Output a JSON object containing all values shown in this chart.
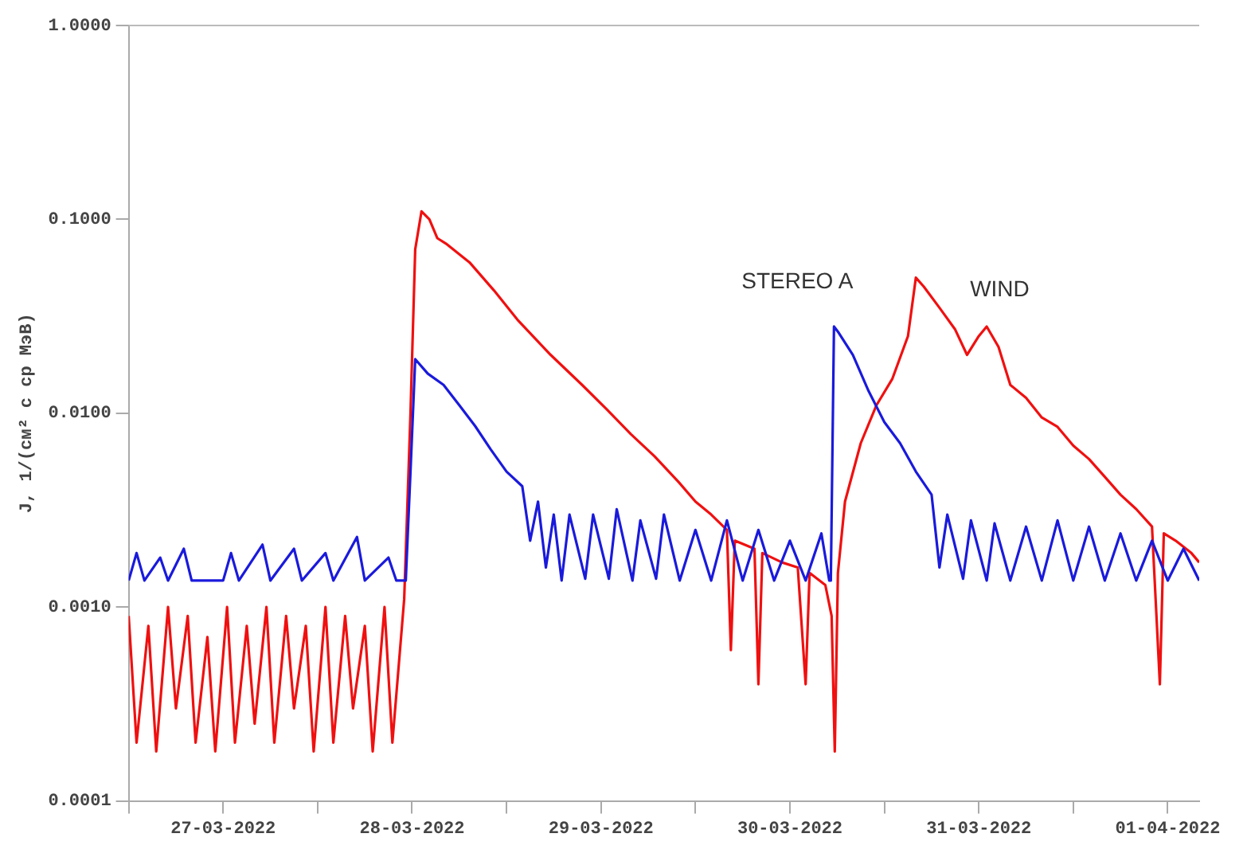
{
  "chart_data": {
    "type": "line",
    "ylabel": "J, 1/(см² с ср МэВ)",
    "log": "y",
    "grid": false,
    "legend": false,
    "marker": "none",
    "line_style": "solid",
    "xlim": [
      "2022-03-27T00:00",
      "2022-04-01T16:00"
    ],
    "xticks": [
      {
        "value": "2022-03-27T00:00",
        "label": null
      },
      {
        "value": "2022-03-27T12:00",
        "label": "27-03-2022"
      },
      {
        "value": "2022-03-28T00:00",
        "label": null
      },
      {
        "value": "2022-03-28T12:00",
        "label": "28-03-2022"
      },
      {
        "value": "2022-03-29T00:00",
        "label": null
      },
      {
        "value": "2022-03-29T12:00",
        "label": "29-03-2022"
      },
      {
        "value": "2022-03-30T00:00",
        "label": null
      },
      {
        "value": "2022-03-30T12:00",
        "label": "30-03-2022"
      },
      {
        "value": "2022-03-31T00:00",
        "label": null
      },
      {
        "value": "2022-03-31T12:00",
        "label": "31-03-2022"
      },
      {
        "value": "2022-04-01T00:00",
        "label": null
      },
      {
        "value": "2022-04-01T12:00",
        "label": "01-04-2022"
      }
    ],
    "ylim": [
      0.0001,
      1
    ],
    "yticks": [
      {
        "value": 0.0001,
        "label": "0.0001"
      },
      {
        "value": 0.001,
        "label": "0.0010"
      },
      {
        "value": 0.01,
        "label": "0.0100"
      },
      {
        "value": 0.1,
        "label": "0.1000"
      },
      {
        "value": 1,
        "label": "1.0000"
      }
    ],
    "series": [
      {
        "name": "STEREO A",
        "color": "#1a1adc",
        "x": [
          "2022-03-27T00:00",
          "2022-03-27T01:00",
          "2022-03-27T02:00",
          "2022-03-27T04:00",
          "2022-03-27T05:00",
          "2022-03-27T07:00",
          "2022-03-27T08:00",
          "2022-03-27T12:00",
          "2022-03-27T13:00",
          "2022-03-27T14:00",
          "2022-03-27T17:00",
          "2022-03-27T18:00",
          "2022-03-27T21:00",
          "2022-03-27T22:00",
          "2022-03-28T01:00",
          "2022-03-28T02:00",
          "2022-03-28T05:00",
          "2022-03-28T06:00",
          "2022-03-28T09:00",
          "2022-03-28T10:00",
          "2022-03-28T11:12",
          "2022-03-28T11:48",
          "2022-03-28T12:24",
          "2022-03-28T14:00",
          "2022-03-28T16:00",
          "2022-03-28T18:00",
          "2022-03-28T20:00",
          "2022-03-28T22:00",
          "2022-03-29T00:00",
          "2022-03-29T02:00",
          "2022-03-29T03:00",
          "2022-03-29T04:00",
          "2022-03-29T05:00",
          "2022-03-29T06:00",
          "2022-03-29T07:00",
          "2022-03-29T08:00",
          "2022-03-29T10:00",
          "2022-03-29T11:00",
          "2022-03-29T13:00",
          "2022-03-29T14:00",
          "2022-03-29T16:00",
          "2022-03-29T17:00",
          "2022-03-29T19:00",
          "2022-03-29T20:00",
          "2022-03-29T22:00",
          "2022-03-30T00:00",
          "2022-03-30T02:00",
          "2022-03-30T04:00",
          "2022-03-30T06:00",
          "2022-03-30T08:00",
          "2022-03-30T10:00",
          "2022-03-30T12:00",
          "2022-03-30T14:00",
          "2022-03-30T16:00",
          "2022-03-30T17:00",
          "2022-03-30T17:12",
          "2022-03-30T17:36",
          "2022-03-30T18:12",
          "2022-03-30T20:00",
          "2022-03-30T22:00",
          "2022-03-31T00:00",
          "2022-03-31T02:00",
          "2022-03-31T04:00",
          "2022-03-31T06:00",
          "2022-03-31T07:00",
          "2022-03-31T08:00",
          "2022-03-31T10:00",
          "2022-03-31T11:00",
          "2022-03-31T13:00",
          "2022-03-31T14:00",
          "2022-03-31T16:00",
          "2022-03-31T18:00",
          "2022-03-31T20:00",
          "2022-03-31T22:00",
          "2022-04-01T00:00",
          "2022-04-01T02:00",
          "2022-04-01T04:00",
          "2022-04-01T06:00",
          "2022-04-01T08:00",
          "2022-04-01T10:00",
          "2022-04-01T12:00",
          "2022-04-01T14:00",
          "2022-04-01T16:00"
        ],
        "values": [
          0.00137,
          0.0019,
          0.00137,
          0.0018,
          0.00137,
          0.002,
          0.00137,
          0.00137,
          0.0019,
          0.00137,
          0.0021,
          0.00137,
          0.002,
          0.00137,
          0.0019,
          0.00137,
          0.0023,
          0.00137,
          0.0018,
          0.00137,
          0.00137,
          0.005,
          0.019,
          0.016,
          0.014,
          0.011,
          0.0086,
          0.0065,
          0.005,
          0.0042,
          0.0022,
          0.0035,
          0.0016,
          0.003,
          0.00137,
          0.003,
          0.0014,
          0.003,
          0.0014,
          0.0032,
          0.00137,
          0.0028,
          0.0014,
          0.003,
          0.00137,
          0.0025,
          0.00137,
          0.0028,
          0.00137,
          0.0025,
          0.00137,
          0.0022,
          0.00137,
          0.0024,
          0.00137,
          0.00137,
          0.028,
          0.026,
          0.02,
          0.013,
          0.009,
          0.007,
          0.005,
          0.0038,
          0.0016,
          0.003,
          0.0014,
          0.0028,
          0.00137,
          0.0027,
          0.00137,
          0.0026,
          0.00137,
          0.0028,
          0.00137,
          0.0026,
          0.00137,
          0.0024,
          0.00137,
          0.0022,
          0.00137,
          0.002,
          0.00137
        ]
      },
      {
        "name": "WIND",
        "color": "#f01010",
        "x": [
          "2022-03-27T00:00",
          "2022-03-27T01:00",
          "2022-03-27T02:30",
          "2022-03-27T03:30",
          "2022-03-27T05:00",
          "2022-03-27T06:00",
          "2022-03-27T07:30",
          "2022-03-27T08:30",
          "2022-03-27T10:00",
          "2022-03-27T11:00",
          "2022-03-27T12:30",
          "2022-03-27T13:30",
          "2022-03-27T15:00",
          "2022-03-27T16:00",
          "2022-03-27T17:30",
          "2022-03-27T18:30",
          "2022-03-27T20:00",
          "2022-03-27T21:00",
          "2022-03-27T22:30",
          "2022-03-27T23:30",
          "2022-03-28T01:00",
          "2022-03-28T02:00",
          "2022-03-28T03:30",
          "2022-03-28T04:30",
          "2022-03-28T06:00",
          "2022-03-28T07:00",
          "2022-03-28T08:30",
          "2022-03-28T09:30",
          "2022-03-28T11:00",
          "2022-03-28T11:48",
          "2022-03-28T12:24",
          "2022-03-28T13:12",
          "2022-03-28T14:12",
          "2022-03-28T15:12",
          "2022-03-28T16:18",
          "2022-03-28T19:18",
          "2022-03-28T22:24",
          "2022-03-29T01:30",
          "2022-03-29T05:36",
          "2022-03-29T09:36",
          "2022-03-29T12:42",
          "2022-03-29T15:48",
          "2022-03-29T18:48",
          "2022-03-29T21:54",
          "2022-03-30T00:00",
          "2022-03-30T02:00",
          "2022-03-30T04:00",
          "2022-03-30T04:30",
          "2022-03-30T05:00",
          "2022-03-30T07:30",
          "2022-03-30T08:00",
          "2022-03-30T08:30",
          "2022-03-30T11:00",
          "2022-03-30T13:00",
          "2022-03-30T14:00",
          "2022-03-30T14:30",
          "2022-03-30T16:30",
          "2022-03-30T17:18",
          "2022-03-30T17:42",
          "2022-03-30T18:06",
          "2022-03-30T19:00",
          "2022-03-30T21:00",
          "2022-03-30T23:00",
          "2022-03-31T01:00",
          "2022-03-31T03:00",
          "2022-03-31T04:00",
          "2022-03-31T05:00",
          "2022-03-31T07:00",
          "2022-03-31T09:00",
          "2022-03-31T10:30",
          "2022-03-31T12:00",
          "2022-03-31T13:00",
          "2022-03-31T14:30",
          "2022-03-31T16:00",
          "2022-03-31T18:00",
          "2022-03-31T20:00",
          "2022-03-31T22:00",
          "2022-04-01T00:00",
          "2022-04-01T02:00",
          "2022-04-01T04:00",
          "2022-04-01T06:00",
          "2022-04-01T08:00",
          "2022-04-01T10:00",
          "2022-04-01T11:00",
          "2022-04-01T11:30",
          "2022-04-01T13:00",
          "2022-04-01T15:00",
          "2022-04-01T16:00"
        ],
        "values": [
          0.0009,
          0.0002,
          0.0008,
          0.00018,
          0.001,
          0.0003,
          0.0009,
          0.0002,
          0.0007,
          0.00018,
          0.001,
          0.0002,
          0.0008,
          0.00025,
          0.001,
          0.0002,
          0.0009,
          0.0003,
          0.0008,
          0.00018,
          0.001,
          0.0002,
          0.0009,
          0.0003,
          0.0008,
          0.00018,
          0.001,
          0.0002,
          0.0011,
          0.01,
          0.07,
          0.11,
          0.1,
          0.08,
          0.075,
          0.06,
          0.043,
          0.03,
          0.02,
          0.014,
          0.0105,
          0.0078,
          0.006,
          0.0044,
          0.0035,
          0.003,
          0.0025,
          0.0006,
          0.0022,
          0.002,
          0.0004,
          0.0019,
          0.0017,
          0.0016,
          0.0004,
          0.0015,
          0.0013,
          0.0009,
          0.00018,
          0.0015,
          0.0035,
          0.007,
          0.011,
          0.015,
          0.025,
          0.05,
          0.045,
          0.035,
          0.027,
          0.02,
          0.025,
          0.028,
          0.022,
          0.014,
          0.012,
          0.0095,
          0.0085,
          0.0068,
          0.0058,
          0.0047,
          0.0038,
          0.0032,
          0.0026,
          0.0004,
          0.0024,
          0.0022,
          0.0019,
          0.0017
        ]
      }
    ]
  }
}
